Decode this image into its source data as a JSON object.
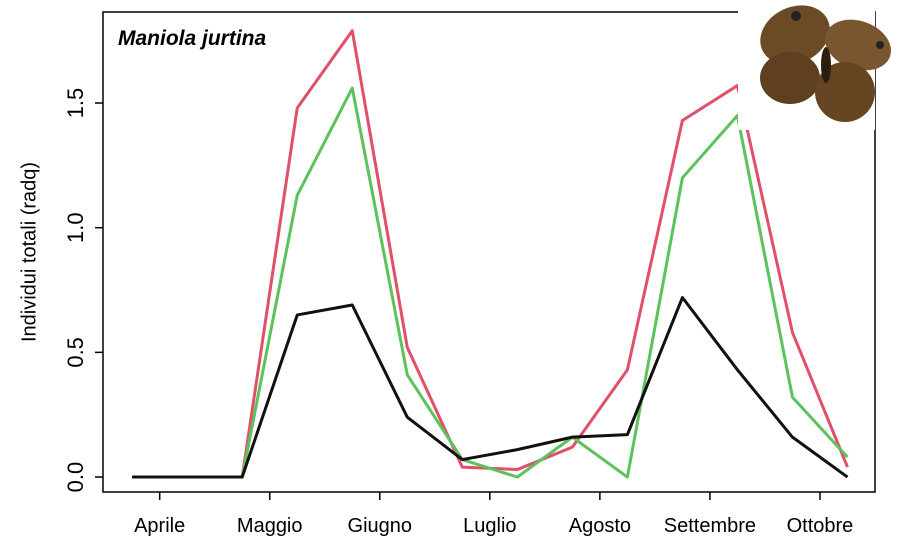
{
  "chart_data": {
    "type": "line",
    "title": "Maniola jurtina",
    "y_label": "Individui totali (radq)",
    "x": [
      0,
      1,
      2,
      3,
      4,
      5,
      6,
      7,
      8,
      9,
      10,
      11,
      12,
      13
    ],
    "series": [
      {
        "color": "#e0506a",
        "values": [
          0,
          0,
          0,
          1.48,
          1.79,
          0.52,
          0.04,
          0.03,
          0.12,
          0.43,
          1.43,
          1.57,
          0.58,
          0.04
        ]
      },
      {
        "color": "#5cc25c",
        "values": [
          0,
          0,
          0,
          1.13,
          1.56,
          0.41,
          0.07,
          0.0,
          0.16,
          0.0,
          1.2,
          1.45,
          0.32,
          0.08
        ]
      },
      {
        "color": "#111111",
        "values": [
          0,
          0,
          0,
          0.65,
          0.69,
          0.24,
          0.07,
          0.11,
          0.16,
          0.17,
          0.72,
          0.43,
          0.16,
          0
        ]
      }
    ],
    "xlim": [
      -0.53,
      13.5
    ],
    "xticks": [
      {
        "value": 0.5,
        "label": "Aprile"
      },
      {
        "value": 2.5,
        "label": "Maggio"
      },
      {
        "value": 4.5,
        "label": "Giugno"
      },
      {
        "value": 6.5,
        "label": "Luglio"
      },
      {
        "value": 8.5,
        "label": "Agosto"
      },
      {
        "value": 10.5,
        "label": "Settembre"
      },
      {
        "value": 12.5,
        "label": "Ottobre"
      }
    ],
    "ylim": [
      -0.06,
      1.865
    ],
    "yticks": [
      {
        "value": 0,
        "label": "0.0"
      },
      {
        "value": 0.5,
        "label": "0.5"
      },
      {
        "value": 1.0,
        "label": "1.0"
      },
      {
        "value": 1.5,
        "label": "1.5"
      }
    ]
  }
}
